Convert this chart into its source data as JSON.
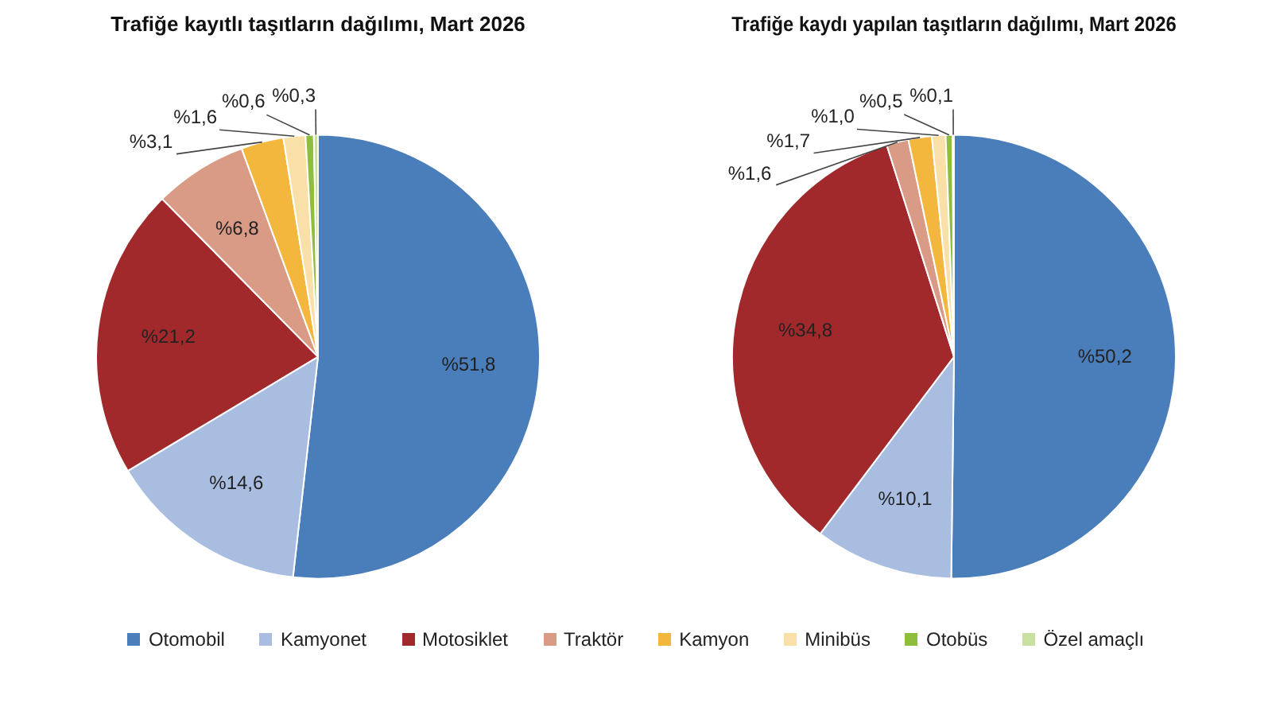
{
  "chart_data": [
    {
      "type": "pie",
      "title": "Trafiğe kayıtlı taşıtların dağılımı, Mart 2026",
      "categories": [
        "Otomobil",
        "Kamyonet",
        "Motosiklet",
        "Traktör",
        "Kamyon",
        "Minibüs",
        "Otobüs",
        "Özel amaçlı"
      ],
      "values": [
        51.8,
        14.6,
        21.2,
        6.8,
        3.1,
        1.6,
        0.6,
        0.3
      ],
      "colors": [
        "#4a7ebb",
        "#a9bde0",
        "#a2292b",
        "#d99a86",
        "#f3b73d",
        "#f9e0a8",
        "#8fbd3c",
        "#c9e0a0"
      ],
      "value_labels": [
        "%51,8",
        "%14,6",
        "%21,2",
        "%6,8",
        "%3,1",
        "%1,6",
        "%0,6",
        "%0,3"
      ],
      "legend": "bottom"
    },
    {
      "type": "pie",
      "title": "Trafiğe kaydı yapılan taşıtların dağılımı, Mart 2026",
      "categories": [
        null,
        null,
        null,
        null,
        null,
        null,
        null,
        null
      ],
      "values": [
        50.2,
        10.1,
        34.8,
        1.6,
        1.7,
        1.0,
        0.5,
        0.1
      ],
      "colors": [
        "#4a7ebb",
        "#a9bde0",
        "#a2292b",
        "#d99a86",
        "#f3b73d",
        "#f9e0a8",
        "#8fbd3c",
        "#c9e0a0"
      ],
      "value_labels": [
        "%50,2",
        "%10,1",
        "%34,8",
        "%1,6",
        "%1,7",
        "%1,0",
        "%0,5",
        "%0,1"
      ]
    }
  ]
}
